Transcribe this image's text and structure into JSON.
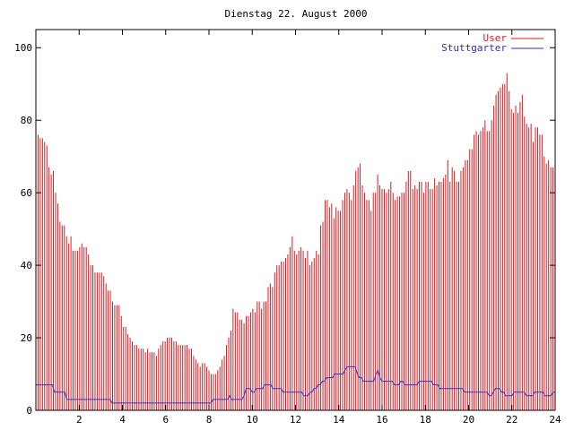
{
  "chart_data": {
    "type": "bar",
    "title": "Dienstag 22. August 2000",
    "xlabel": "",
    "ylabel": "",
    "xlim": [
      0,
      24
    ],
    "ylim": [
      0,
      105
    ],
    "x_ticks": [
      2,
      4,
      6,
      8,
      10,
      12,
      14,
      16,
      18,
      20,
      22,
      24
    ],
    "y_ticks": [
      0,
      20,
      40,
      60,
      80,
      100
    ],
    "grid": false,
    "legend_position": "top-right",
    "x_step_hours": 0.0833,
    "series": [
      {
        "name": "User",
        "kind": "impulses",
        "color": "#e0191f",
        "values": [
          76,
          76,
          75,
          75,
          74,
          73,
          67,
          65,
          66,
          60,
          57,
          52,
          51,
          51,
          48,
          46,
          48,
          44,
          44,
          44,
          45,
          46,
          45,
          45,
          43,
          40,
          40,
          38,
          38,
          38,
          38,
          37,
          35,
          33,
          33,
          30,
          29,
          29,
          29,
          26,
          23,
          23,
          21,
          20,
          19,
          18,
          18,
          17,
          17,
          17,
          16,
          17,
          16,
          16,
          16,
          15,
          17,
          18,
          19,
          19,
          20,
          20,
          20,
          19,
          19,
          18,
          18,
          18,
          18,
          18,
          17,
          17,
          15,
          14,
          13,
          12,
          13,
          13,
          12,
          11,
          10,
          10,
          10,
          11,
          12,
          14,
          15,
          18,
          20,
          22,
          28,
          27,
          27,
          25,
          25,
          24,
          26,
          26,
          27,
          28,
          27,
          30,
          30,
          28,
          30,
          30,
          34,
          35,
          34,
          38,
          40,
          40,
          41,
          41,
          42,
          43,
          45,
          48,
          44,
          43,
          44,
          45,
          44,
          42,
          44,
          40,
          41,
          42,
          44,
          43,
          51,
          52,
          58,
          58,
          56,
          57,
          53,
          56,
          55,
          55,
          58,
          60,
          61,
          60,
          58,
          62,
          66,
          67,
          68,
          62,
          60,
          58,
          58,
          55,
          60,
          60,
          65,
          62,
          61,
          61,
          60,
          61,
          63,
          60,
          58,
          59,
          59,
          60,
          60,
          63,
          66,
          66,
          61,
          62,
          61,
          63,
          63,
          60,
          63,
          63,
          61,
          61,
          64,
          62,
          63,
          63,
          64,
          65,
          69,
          63,
          67,
          66,
          63,
          63,
          66,
          67,
          69,
          69,
          72,
          72,
          76,
          77,
          76,
          77,
          78,
          80,
          77,
          77,
          80,
          84,
          87,
          88,
          89,
          90,
          90,
          93,
          88,
          83,
          82,
          84,
          82,
          85,
          87,
          81,
          79,
          78,
          79,
          74,
          78,
          78,
          76,
          76,
          70,
          68,
          69,
          67,
          67,
          66
        ]
      },
      {
        "name": "Stuttgarter",
        "kind": "line",
        "color": "#2e2ec8",
        "values": [
          7,
          7,
          7,
          7,
          7,
          7,
          7,
          7,
          7,
          5,
          5,
          5,
          5,
          5,
          5,
          3,
          3,
          3,
          3,
          3,
          3,
          3,
          3,
          3,
          3,
          3,
          3,
          3,
          3,
          3,
          3,
          3,
          3,
          3,
          3,
          3,
          3,
          2,
          2,
          2,
          2,
          2,
          2,
          2,
          2,
          2,
          2,
          2,
          2,
          2,
          2,
          2,
          2,
          2,
          2,
          2,
          2,
          2,
          2,
          2,
          2,
          2,
          2,
          2,
          2,
          2,
          2,
          2,
          2,
          2,
          2,
          2,
          2,
          2,
          2,
          2,
          2,
          2,
          2,
          2,
          2,
          2,
          2,
          2,
          2,
          2,
          3,
          3,
          3,
          3,
          3,
          3,
          3,
          3,
          4,
          3,
          3,
          3,
          3,
          3,
          3,
          4,
          6,
          6,
          6,
          5,
          5,
          6,
          6,
          6,
          6,
          7,
          7,
          7,
          7,
          6,
          6,
          6,
          6,
          6,
          5,
          5,
          5,
          5,
          5,
          5,
          5,
          5,
          5,
          5,
          4,
          4,
          4,
          5,
          5,
          6,
          6,
          7,
          7,
          8,
          8,
          9,
          9,
          9,
          9,
          10,
          10,
          10,
          10,
          10,
          11,
          12,
          12,
          12,
          12,
          12,
          10,
          9,
          9,
          8,
          8,
          8,
          8,
          8,
          8,
          10,
          11,
          9,
          8,
          8,
          8,
          8,
          8,
          8,
          7,
          7,
          7,
          8,
          8,
          7,
          7,
          7,
          7,
          7,
          7,
          7,
          8,
          8,
          8,
          8,
          8,
          8,
          8,
          7,
          7,
          7,
          6,
          6,
          6,
          6,
          6,
          6,
          6,
          6,
          6,
          6,
          6,
          6,
          5,
          5,
          5,
          5,
          5,
          5,
          5,
          5,
          5,
          5,
          5,
          5,
          4,
          4,
          5,
          6,
          6,
          6,
          5,
          5,
          4,
          4,
          4,
          4,
          5,
          5,
          5,
          5,
          5,
          5,
          4,
          4,
          4,
          4,
          5,
          5,
          5,
          5,
          5,
          4,
          4,
          4,
          4,
          5,
          5
        ]
      }
    ]
  }
}
